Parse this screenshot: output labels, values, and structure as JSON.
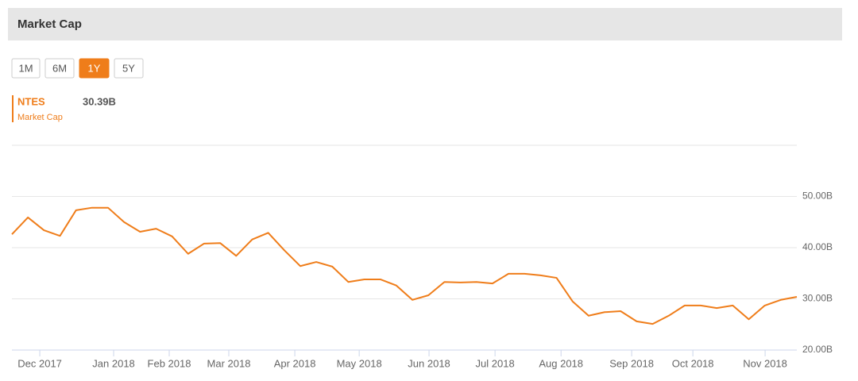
{
  "header": {
    "title": "Market Cap"
  },
  "range_buttons": {
    "labels": [
      "1M",
      "6M",
      "1Y",
      "5Y"
    ],
    "selected_index": 2
  },
  "chart_data": {
    "type": "line",
    "series": [
      {
        "name": "NTES",
        "subtitle": "Market Cap",
        "last_label": "30.39B",
        "color": "#ef7d1a",
        "values": [
          42.6,
          45.9,
          43.4,
          42.3,
          47.3,
          47.8,
          47.8,
          45.0,
          43.1,
          43.7,
          42.2,
          38.8,
          40.8,
          40.9,
          38.4,
          41.6,
          42.9,
          39.5,
          36.4,
          37.2,
          36.3,
          33.3,
          33.8,
          33.8,
          32.6,
          29.8,
          30.7,
          33.3,
          33.2,
          33.3,
          33.0,
          34.9,
          34.9,
          34.6,
          34.1,
          29.5,
          26.7,
          27.4,
          27.6,
          25.6,
          25.1,
          26.7,
          28.7,
          28.7,
          28.2,
          28.7,
          26.0,
          28.7,
          29.8,
          30.39
        ]
      }
    ],
    "xlim": [
      0,
      49
    ],
    "xticks": [
      {
        "value": 1.74,
        "label": "Dec 2017"
      },
      {
        "value": 6.35,
        "label": "Jan 2018"
      },
      {
        "value": 9.82,
        "label": "Feb 2018"
      },
      {
        "value": 13.54,
        "label": "Mar 2018"
      },
      {
        "value": 17.66,
        "label": "Apr 2018"
      },
      {
        "value": 21.68,
        "label": "May 2018"
      },
      {
        "value": 26.04,
        "label": "Jun 2018"
      },
      {
        "value": 30.16,
        "label": "Jul 2018"
      },
      {
        "value": 34.28,
        "label": "Aug 2018"
      },
      {
        "value": 38.69,
        "label": "Sep 2018"
      },
      {
        "value": 42.51,
        "label": "Oct 2018"
      },
      {
        "value": 47.02,
        "label": "Nov 2018"
      }
    ],
    "ylim": [
      20,
      60
    ],
    "yticks": [
      {
        "value": 20,
        "label": "20.00B"
      },
      {
        "value": 30,
        "label": "30.00B"
      },
      {
        "value": 40,
        "label": "40.00B"
      },
      {
        "value": 50,
        "label": "50.00B"
      }
    ],
    "grid": true
  }
}
